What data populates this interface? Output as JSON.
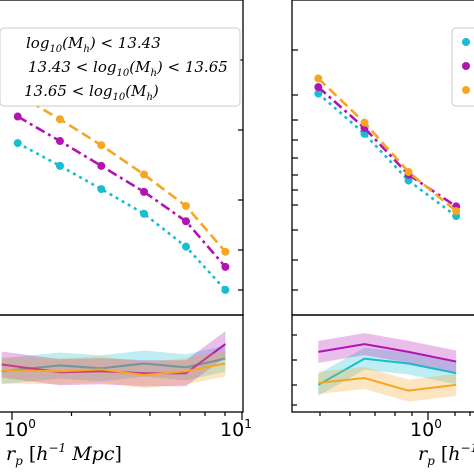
{
  "colors": {
    "teal": "#17becf",
    "purple": "#b214b2",
    "orange": "#f5a623"
  },
  "chart_data": [
    {
      "type": "line",
      "panel": "left-top",
      "xscale": "log",
      "yscale": "log",
      "legend_placement": "top",
      "legend": [
        "log_{10}(M_h) < 13.43",
        "13.43 < log_{10}(M_h) < 13.65",
        "13.65 < log_{10}(M_h)"
      ],
      "x": [
        0.5,
        0.9,
        1.6,
        2.9,
        5.2,
        9.0
      ],
      "series": [
        {
          "name": "log_{10}(M_h) < 13.43",
          "color": "teal",
          "values": [
            14,
            9.5,
            6.4,
            4.2,
            2.4,
            1.15
          ]
        },
        {
          "name": "13.43 < log_{10}(M_h) < 13.65",
          "color": "purple",
          "values": [
            22,
            14.5,
            9.5,
            6.1,
            3.7,
            1.7
          ]
        },
        {
          "name": "13.65 < log_{10}(M_h)",
          "color": "orange",
          "values": [
            32,
            21,
            13.5,
            8.2,
            4.8,
            2.2
          ]
        }
      ]
    },
    {
      "type": "area",
      "panel": "left-bottom",
      "xscale": "log",
      "xlabel": "r_p [h^{-1} Mpc]",
      "xticks": [
        "10^0",
        "10^1"
      ],
      "x": [
        0.4,
        0.9,
        1.6,
        2.9,
        5.2,
        9.0
      ],
      "series": [
        {
          "name": "log_{10}(M_h) < 13.43",
          "color": "teal",
          "values": [
            0.42,
            0.48,
            0.45,
            0.5,
            0.46,
            0.55
          ]
        },
        {
          "name": "13.43 < log_{10}(M_h) < 13.65",
          "color": "purple",
          "values": [
            0.49,
            0.41,
            0.42,
            0.4,
            0.4,
            0.7
          ]
        },
        {
          "name": "13.65 < log_{10}(M_h)",
          "color": "orange",
          "values": [
            0.43,
            0.42,
            0.44,
            0.38,
            0.42,
            0.5
          ]
        }
      ]
    },
    {
      "type": "line",
      "panel": "right-top",
      "xscale": "log",
      "yscale": "log",
      "x": [
        0.27,
        0.5,
        0.9,
        1.7
      ],
      "series": [
        {
          "name": "teal",
          "color": "teal",
          "values": [
            40,
            22,
            11,
            6.5
          ]
        },
        {
          "name": "purple",
          "color": "purple",
          "values": [
            44,
            24,
            12,
            7.5
          ]
        },
        {
          "name": "orange",
          "color": "orange",
          "values": [
            50,
            26,
            12.5,
            7
          ]
        }
      ]
    },
    {
      "type": "area",
      "panel": "right-bottom",
      "xscale": "log",
      "xlabel": "r_p [h^{-1}",
      "xticks": [
        "10^0"
      ],
      "x": [
        0.27,
        0.5,
        0.9,
        1.7
      ],
      "series": [
        {
          "name": "teal",
          "color": "teal",
          "values": [
            0.28,
            0.55,
            0.5,
            0.4
          ]
        },
        {
          "name": "purple",
          "color": "purple",
          "values": [
            0.62,
            0.7,
            0.62,
            0.52
          ]
        },
        {
          "name": "orange",
          "color": "orange",
          "values": [
            0.3,
            0.35,
            0.22,
            0.28
          ]
        }
      ]
    }
  ]
}
